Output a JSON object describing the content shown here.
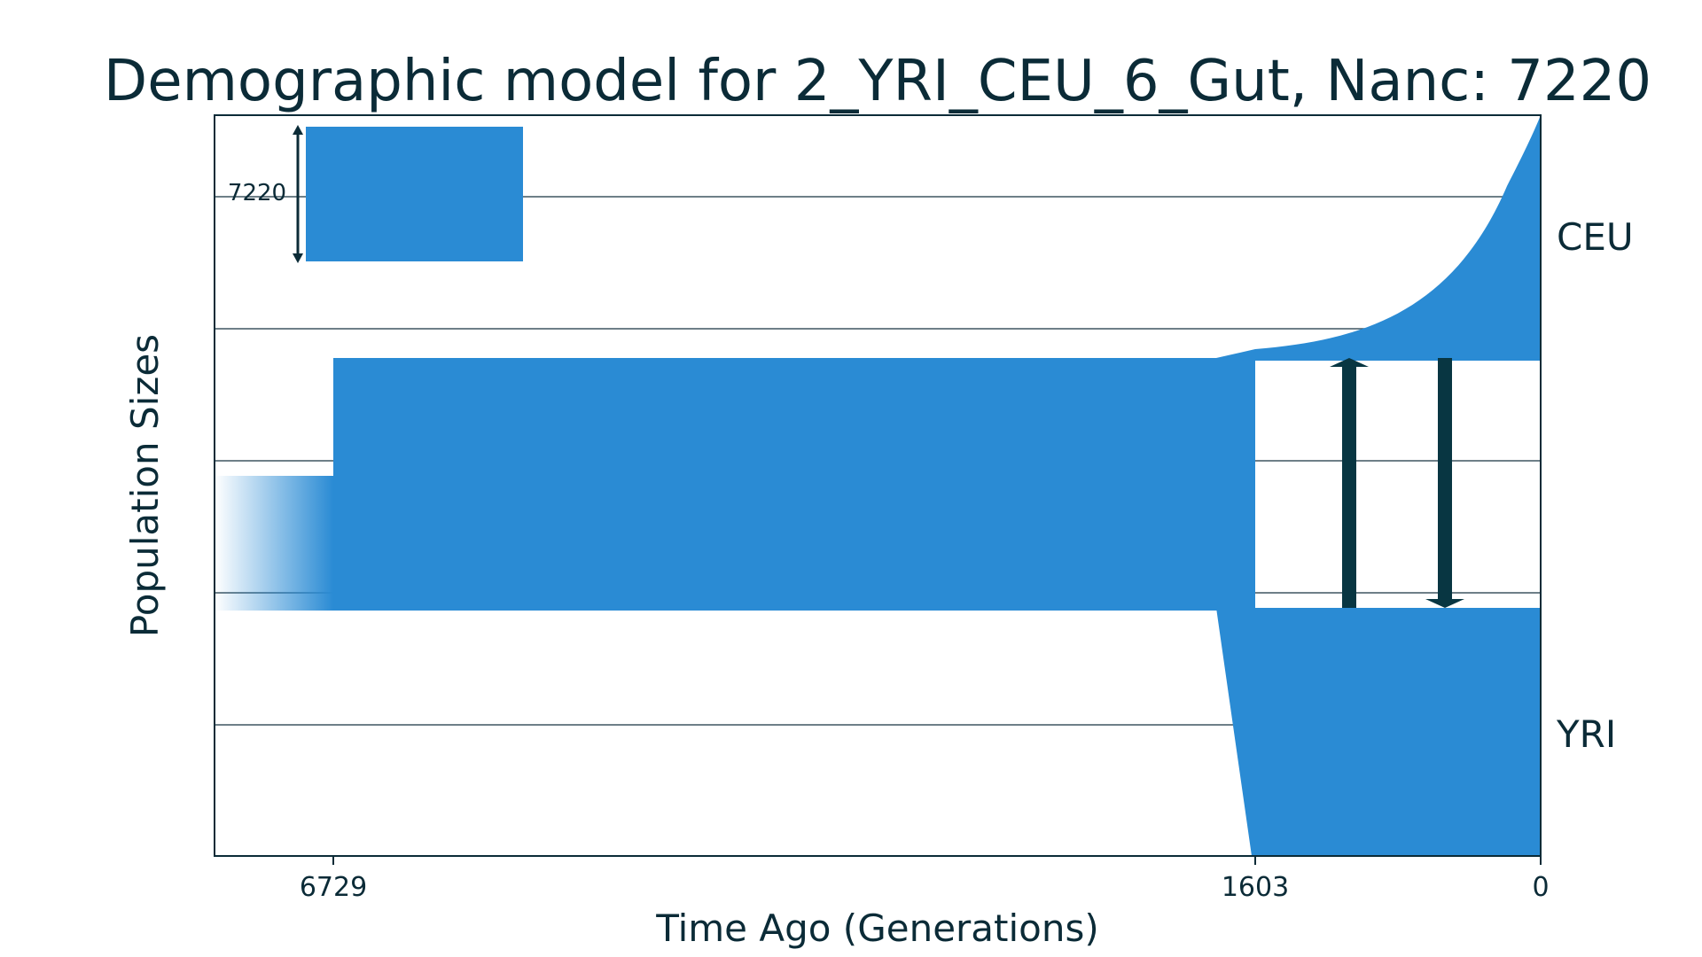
{
  "title": "Demographic model for 2_YRI_CEU_6_Gut, Nanc: 7220",
  "xlabel": "Time Ago (Generations)",
  "ylabel": "Population Sizes",
  "colors": {
    "population_fill": "#2a8bd4",
    "ink": "#0b2b37",
    "gridline": "#3f5560",
    "migration_arrow": "#083642"
  },
  "scale_bar": {
    "label": "7220",
    "value": 7220
  },
  "x_ticks": [
    "6729",
    "1603",
    "0"
  ],
  "x_tick_values": [
    6729,
    1603,
    0
  ],
  "populations": [
    {
      "label": "CEU"
    },
    {
      "label": "YRI"
    }
  ],
  "events": {
    "ancestral_size_change_generations": 6729,
    "split_generations": 1603
  },
  "migrations": [
    {
      "from": "YRI",
      "to": "CEU"
    },
    {
      "from": "CEU",
      "to": "YRI"
    }
  ],
  "grid": true
}
